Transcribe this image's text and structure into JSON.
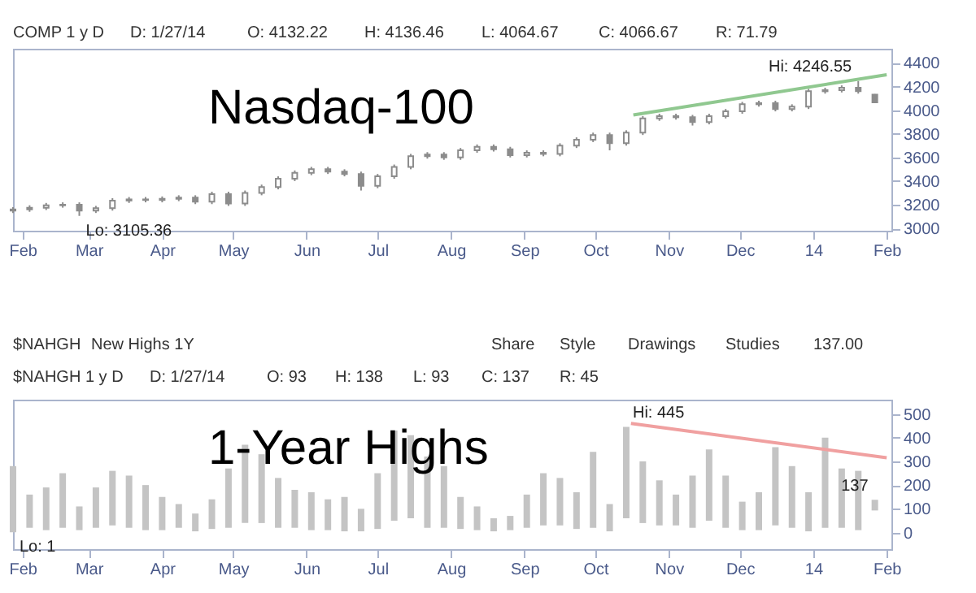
{
  "chart_data": [
    {
      "type": "candlestick",
      "title": "Nasdaq-100",
      "color": "#8c8c8c",
      "x": [
        "2013-01-28",
        "2013-02-04",
        "2013-02-11",
        "2013-02-18",
        "2013-02-25",
        "2013-03-04",
        "2013-03-11",
        "2013-03-18",
        "2013-03-25",
        "2013-04-01",
        "2013-04-08",
        "2013-04-15",
        "2013-04-22",
        "2013-04-29",
        "2013-05-06",
        "2013-05-13",
        "2013-05-20",
        "2013-05-27",
        "2013-06-03",
        "2013-06-10",
        "2013-06-17",
        "2013-06-24",
        "2013-07-01",
        "2013-07-08",
        "2013-07-15",
        "2013-07-22",
        "2013-07-29",
        "2013-08-05",
        "2013-08-12",
        "2013-08-19",
        "2013-08-26",
        "2013-09-02",
        "2013-09-09",
        "2013-09-16",
        "2013-09-23",
        "2013-09-30",
        "2013-10-07",
        "2013-10-14",
        "2013-10-21",
        "2013-10-28",
        "2013-11-04",
        "2013-11-11",
        "2013-11-18",
        "2013-11-25",
        "2013-12-02",
        "2013-12-09",
        "2013-12-16",
        "2013-12-23",
        "2013-12-30",
        "2014-01-06",
        "2014-01-13",
        "2014-01-20",
        "2014-01-27"
      ],
      "ohlc": [
        [
          3150,
          3180,
          3130,
          3160
        ],
        [
          3160,
          3195,
          3140,
          3175
        ],
        [
          3175,
          3215,
          3155,
          3195
        ],
        [
          3195,
          3220,
          3175,
          3200
        ],
        [
          3200,
          3220,
          3105.36,
          3150
        ],
        [
          3150,
          3190,
          3130,
          3170
        ],
        [
          3170,
          3255,
          3150,
          3235
        ],
        [
          3235,
          3265,
          3215,
          3245
        ],
        [
          3245,
          3265,
          3220,
          3240
        ],
        [
          3240,
          3270,
          3220,
          3250
        ],
        [
          3250,
          3280,
          3230,
          3260
        ],
        [
          3260,
          3280,
          3205,
          3225
        ],
        [
          3225,
          3310,
          3205,
          3290
        ],
        [
          3290,
          3310,
          3190,
          3210
        ],
        [
          3210,
          3320,
          3190,
          3300
        ],
        [
          3300,
          3370,
          3280,
          3350
        ],
        [
          3350,
          3440,
          3330,
          3420
        ],
        [
          3420,
          3490,
          3400,
          3470
        ],
        [
          3470,
          3520,
          3450,
          3500
        ],
        [
          3500,
          3520,
          3460,
          3480
        ],
        [
          3480,
          3500,
          3440,
          3460
        ],
        [
          3460,
          3480,
          3320,
          3360
        ],
        [
          3360,
          3460,
          3340,
          3440
        ],
        [
          3440,
          3540,
          3420,
          3520
        ],
        [
          3520,
          3630,
          3500,
          3610
        ],
        [
          3610,
          3645,
          3590,
          3625
        ],
        [
          3625,
          3645,
          3580,
          3600
        ],
        [
          3600,
          3680,
          3580,
          3660
        ],
        [
          3660,
          3710,
          3640,
          3690
        ],
        [
          3690,
          3710,
          3650,
          3670
        ],
        [
          3670,
          3690,
          3600,
          3620
        ],
        [
          3620,
          3660,
          3600,
          3640
        ],
        [
          3640,
          3660,
          3610,
          3630
        ],
        [
          3630,
          3720,
          3610,
          3700
        ],
        [
          3700,
          3770,
          3680,
          3750
        ],
        [
          3750,
          3810,
          3730,
          3790
        ],
        [
          3790,
          3810,
          3660,
          3720
        ],
        [
          3720,
          3830,
          3700,
          3810
        ],
        [
          3810,
          3950,
          3790,
          3930
        ],
        [
          3930,
          3970,
          3910,
          3950
        ],
        [
          3950,
          3970,
          3920,
          3940
        ],
        [
          3940,
          3960,
          3870,
          3900
        ],
        [
          3900,
          3970,
          3880,
          3950
        ],
        [
          3950,
          4010,
          3930,
          3990
        ],
        [
          3990,
          4070,
          3970,
          4050
        ],
        [
          4050,
          4080,
          4030,
          4060
        ],
        [
          4060,
          4080,
          3990,
          4010
        ],
        [
          4010,
          4050,
          3990,
          4030
        ],
        [
          4030,
          4180,
          4010,
          4160
        ],
        [
          4160,
          4190,
          4140,
          4170
        ],
        [
          4170,
          4210,
          4150,
          4190
        ],
        [
          4190,
          4246.55,
          4140,
          4160
        ],
        [
          4132.22,
          4136.46,
          4064.67,
          4066.67
        ]
      ],
      "series": [
        {
          "type": "line",
          "color": "#90c890",
          "x": [
            "2013-10-17",
            "2014-02-01"
          ],
          "values": [
            3960,
            4300
          ]
        }
      ],
      "xlim": [
        "2013-01-28",
        "2014-02-03"
      ],
      "xticks": [
        {
          "value": "2013-02-01",
          "label": "Feb"
        },
        {
          "value": "2013-03-01",
          "label": "Mar"
        },
        {
          "value": "2013-04-01",
          "label": "Apr"
        },
        {
          "value": "2013-05-01",
          "label": "May"
        },
        {
          "value": "2013-06-01",
          "label": "Jun"
        },
        {
          "value": "2013-07-01",
          "label": "Jul"
        },
        {
          "value": "2013-08-01",
          "label": "Aug"
        },
        {
          "value": "2013-09-01",
          "label": "Sep"
        },
        {
          "value": "2013-10-01",
          "label": "Oct"
        },
        {
          "value": "2013-11-01",
          "label": "Nov"
        },
        {
          "value": "2013-12-01",
          "label": "Dec"
        },
        {
          "value": "2014-01-01",
          "label": "14"
        },
        {
          "value": "2014-02-01",
          "label": "Feb"
        }
      ],
      "ylim": [
        2980,
        4520
      ],
      "yticks": [
        3000,
        3200,
        3400,
        3600,
        3800,
        4000,
        4200,
        4400
      ],
      "annotations": [
        "COMP 1 y D",
        "D: 1/27/14",
        "O: 4132.22",
        "H: 4136.46",
        "L: 4064.67",
        "C: 4066.67",
        "R: 71.79",
        {
          "text": "Hi: 4246.55",
          "x": "2014-01-20",
          "y": 4246.55
        },
        {
          "text": "Lo: 3105.36",
          "x": "2013-02-25",
          "y": 3105.36
        }
      ]
    },
    {
      "type": "bar",
      "title": "1-Year Highs",
      "x": [
        "2013-01-28",
        "2013-02-04",
        "2013-02-11",
        "2013-02-18",
        "2013-02-25",
        "2013-03-04",
        "2013-03-11",
        "2013-03-18",
        "2013-03-25",
        "2013-04-01",
        "2013-04-08",
        "2013-04-15",
        "2013-04-22",
        "2013-04-29",
        "2013-05-06",
        "2013-05-13",
        "2013-05-20",
        "2013-05-27",
        "2013-06-03",
        "2013-06-10",
        "2013-06-17",
        "2013-06-24",
        "2013-07-01",
        "2013-07-08",
        "2013-07-15",
        "2013-07-22",
        "2013-07-29",
        "2013-08-05",
        "2013-08-12",
        "2013-08-19",
        "2013-08-26",
        "2013-09-02",
        "2013-09-09",
        "2013-09-16",
        "2013-09-23",
        "2013-09-30",
        "2013-10-07",
        "2013-10-14",
        "2013-10-21",
        "2013-10-28",
        "2013-11-04",
        "2013-11-11",
        "2013-11-18",
        "2013-11-25",
        "2013-12-02",
        "2013-12-09",
        "2013-12-16",
        "2013-12-23",
        "2013-12-30",
        "2014-01-06",
        "2014-01-13",
        "2014-01-20",
        "2014-01-27"
      ],
      "series": [
        {
          "type": "bar",
          "color": "#c4c4c4",
          "base": [
            1,
            20,
            10,
            20,
            10,
            20,
            30,
            20,
            10,
            10,
            20,
            5,
            15,
            20,
            40,
            40,
            20,
            20,
            10,
            10,
            5,
            5,
            15,
            50,
            60,
            20,
            20,
            15,
            10,
            5,
            10,
            20,
            30,
            30,
            15,
            20,
            5,
            60,
            40,
            30,
            30,
            20,
            50,
            20,
            10,
            10,
            30,
            20,
            5,
            20,
            20,
            10,
            93
          ],
          "values": [
            279,
            140,
            180,
            230,
            100,
            170,
            230,
            220,
            190,
            140,
            100,
            75,
            125,
            250,
            330,
            290,
            210,
            160,
            160,
            130,
            145,
            95,
            235,
            380,
            350,
            300,
            260,
            135,
            100,
            55,
            60,
            140,
            220,
            200,
            155,
            320,
            115,
            385,
            260,
            190,
            130,
            220,
            300,
            220,
            120,
            160,
            330,
            260,
            165,
            380,
            250,
            250,
            45
          ]
        },
        {
          "type": "line",
          "color": "#f0a0a0",
          "x": [
            "2013-10-16",
            "2014-02-01"
          ],
          "values": [
            460,
            315
          ]
        }
      ],
      "xlim": [
        "2013-01-28",
        "2014-02-03"
      ],
      "xticks": [
        {
          "value": "2013-02-01",
          "label": "Feb"
        },
        {
          "value": "2013-03-01",
          "label": "Mar"
        },
        {
          "value": "2013-04-01",
          "label": "Apr"
        },
        {
          "value": "2013-05-01",
          "label": "May"
        },
        {
          "value": "2013-06-01",
          "label": "Jun"
        },
        {
          "value": "2013-07-01",
          "label": "Jul"
        },
        {
          "value": "2013-08-01",
          "label": "Aug"
        },
        {
          "value": "2013-09-01",
          "label": "Sep"
        },
        {
          "value": "2013-10-01",
          "label": "Oct"
        },
        {
          "value": "2013-11-01",
          "label": "Nov"
        },
        {
          "value": "2013-12-01",
          "label": "Dec"
        },
        {
          "value": "2014-01-01",
          "label": "14"
        },
        {
          "value": "2014-02-01",
          "label": "Feb"
        }
      ],
      "ylim": [
        -70,
        560
      ],
      "yticks": [
        0,
        100,
        200,
        300,
        400,
        500
      ],
      "annotations": [
        "$NAHGH",
        "New Highs 1Y",
        "Share",
        "Style",
        "Drawings",
        "Studies",
        "137.00",
        "$NAHGH 1 y D",
        "D: 1/27/14",
        "O: 93",
        "H: 138",
        "L: 93",
        "C: 137",
        "R: 45",
        {
          "text": "Hi: 445",
          "x": "2013-10-14",
          "y": 445
        },
        {
          "text": "Lo: 1",
          "x": "2013-01-28",
          "y": 1
        },
        {
          "text": "137",
          "x": "2014-01-27",
          "y": 137
        }
      ]
    }
  ]
}
